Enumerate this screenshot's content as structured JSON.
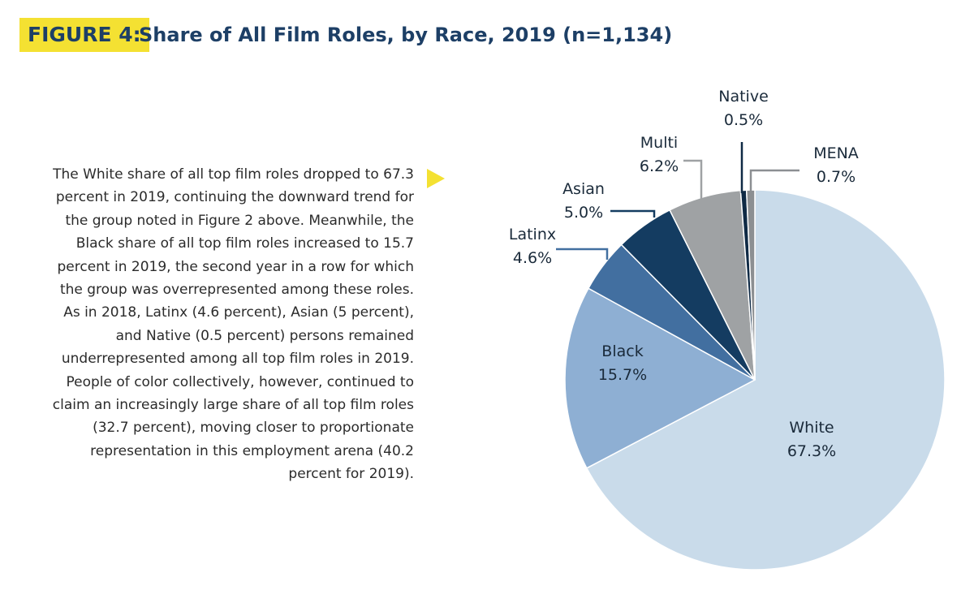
{
  "figure": {
    "tag": "FIGURE 4:",
    "title": "Share of All Film Roles, by Race, 2019 (n=1,134)"
  },
  "body_text": "The White share of all top film roles dropped to 67.3 percent in 2019, continuing the downward trend for the group noted in Figure 2 above. Meanwhile, the Black share of all top film roles increased to 15.7 percent in 2019, the second year in a row for which the group was overrepresented among these roles.  As in 2018, Latinx (4.6 percent), Asian (5 percent), and Native (0.5 percent) persons remained underrepresented among all top film roles in 2019.  People of color collectively, however, continued to claim an increasingly large share of all top film roles (32.7 percent), moving closer to proportionate representation in this employment arena (40.2 percent for 2019).",
  "colors": {
    "accent_yellow": "#f4e132",
    "title_navy": "#1d3f66"
  },
  "chart_data": {
    "type": "pie",
    "title": "Share of All Film Roles, by Race, 2019 (n=1,134)",
    "unit": "%",
    "slices": [
      {
        "name": "White",
        "value": 67.3,
        "value_label": "67.3%",
        "color": "#c9dbea"
      },
      {
        "name": "Black",
        "value": 15.7,
        "value_label": "15.7%",
        "color": "#8eafd3"
      },
      {
        "name": "Latinx",
        "value": 4.6,
        "value_label": "4.6%",
        "color": "#426fa0"
      },
      {
        "name": "Asian",
        "value": 5.0,
        "value_label": "5.0%",
        "color": "#143c61"
      },
      {
        "name": "Multi",
        "value": 6.2,
        "value_label": "6.2%",
        "color": "#9fa2a4"
      },
      {
        "name": "Native",
        "value": 0.5,
        "value_label": "0.5%",
        "color": "#0f2a45"
      },
      {
        "name": "MENA",
        "value": 0.7,
        "value_label": "0.7%",
        "color": "#8c8f92"
      }
    ]
  }
}
